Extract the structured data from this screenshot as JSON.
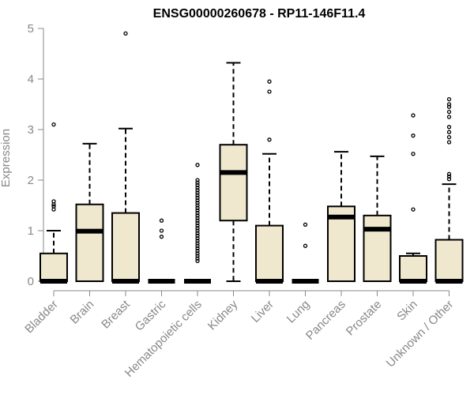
{
  "chart_data": {
    "type": "boxplot",
    "title": "ENSG00000260678 - RP11-146F11.4",
    "ylabel": "Expression",
    "xlabel": "",
    "ylim": [
      0,
      5
    ],
    "yticks": [
      0,
      1,
      2,
      3,
      4,
      5
    ],
    "box_fill": "#efe8cf",
    "categories": [
      "Bladder",
      "Brain",
      "Breast",
      "Gastric",
      "Hematopoietic cells",
      "Kidney",
      "Liver",
      "Lung",
      "Pancreas",
      "Prostate",
      "Skin",
      "Unknown / Other"
    ],
    "boxes": [
      {
        "name": "Bladder",
        "lower_whisker": 0,
        "q1": 0,
        "median": 0,
        "q3": 0.55,
        "upper_whisker": 1.0,
        "outliers": [
          1.42,
          1.48,
          1.52,
          1.58,
          3.1
        ]
      },
      {
        "name": "Brain",
        "lower_whisker": 0,
        "q1": 0,
        "median": 0.99,
        "q3": 1.52,
        "upper_whisker": 2.72,
        "outliers": []
      },
      {
        "name": "Breast",
        "lower_whisker": 0,
        "q1": 0,
        "median": 0,
        "q3": 1.35,
        "upper_whisker": 3.02,
        "outliers": [
          4.9
        ]
      },
      {
        "name": "Gastric",
        "lower_whisker": 0,
        "q1": 0,
        "median": 0,
        "q3": 0,
        "upper_whisker": 0,
        "outliers": [
          0.88,
          1.0,
          1.2
        ]
      },
      {
        "name": "Hematopoietic cells",
        "lower_whisker": 0,
        "q1": 0,
        "median": 0,
        "q3": 0,
        "upper_whisker": 0,
        "outliers": [
          0.4,
          0.45,
          0.5,
          0.55,
          0.6,
          0.65,
          0.7,
          0.75,
          0.8,
          0.85,
          0.9,
          0.95,
          1.0,
          1.05,
          1.1,
          1.15,
          1.2,
          1.25,
          1.3,
          1.35,
          1.4,
          1.45,
          1.5,
          1.55,
          1.6,
          1.65,
          1.7,
          1.75,
          1.8,
          1.85,
          1.9,
          1.95,
          2.0,
          2.3
        ]
      },
      {
        "name": "Kidney",
        "lower_whisker": 0,
        "q1": 1.2,
        "median": 2.15,
        "q3": 2.7,
        "upper_whisker": 4.32,
        "outliers": []
      },
      {
        "name": "Liver",
        "lower_whisker": 0,
        "q1": 0,
        "median": 0,
        "q3": 1.1,
        "upper_whisker": 2.52,
        "outliers": [
          2.8,
          3.75,
          3.95
        ]
      },
      {
        "name": "Lung",
        "lower_whisker": 0,
        "q1": 0,
        "median": 0,
        "q3": 0,
        "upper_whisker": 0,
        "outliers": [
          0.7,
          1.12
        ]
      },
      {
        "name": "Pancreas",
        "lower_whisker": 0,
        "q1": 0,
        "median": 1.27,
        "q3": 1.48,
        "upper_whisker": 2.56,
        "outliers": []
      },
      {
        "name": "Prostate",
        "lower_whisker": 0,
        "q1": 0,
        "median": 1.03,
        "q3": 1.3,
        "upper_whisker": 2.47,
        "outliers": []
      },
      {
        "name": "Skin",
        "lower_whisker": 0,
        "q1": 0,
        "median": 0,
        "q3": 0.5,
        "upper_whisker": 0.55,
        "outliers": [
          1.42,
          2.52,
          2.88,
          3.28
        ]
      },
      {
        "name": "Unknown / Other",
        "lower_whisker": 0,
        "q1": 0,
        "median": 0,
        "q3": 0.82,
        "upper_whisker": 1.92,
        "outliers": [
          2.02,
          2.07,
          2.12,
          2.75,
          2.85,
          2.95,
          3.05,
          3.25,
          3.35,
          3.45,
          3.5,
          3.6
        ]
      }
    ]
  }
}
